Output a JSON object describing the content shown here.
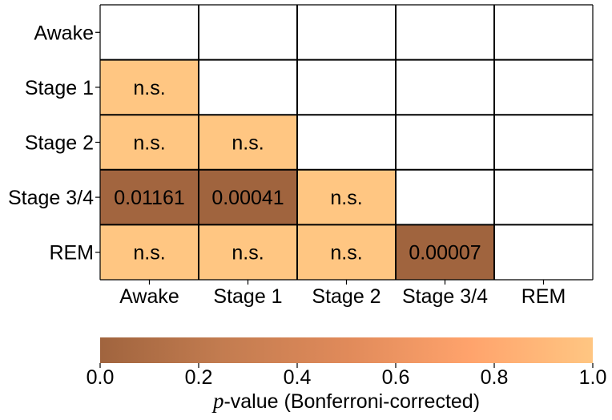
{
  "chart_data": {
    "type": "heatmap",
    "title": "",
    "x_categories": [
      "Awake",
      "Stage 1",
      "Stage 2",
      "Stage 3/4",
      "REM"
    ],
    "y_categories": [
      "Awake",
      "Stage 1",
      "Stage 2",
      "Stage 3/4",
      "REM"
    ],
    "cells": [
      {
        "row": "Stage 1",
        "col": "Awake",
        "label": "n.s.",
        "value": 1.0
      },
      {
        "row": "Stage 2",
        "col": "Awake",
        "label": "n.s.",
        "value": 1.0
      },
      {
        "row": "Stage 2",
        "col": "Stage 1",
        "label": "n.s.",
        "value": 1.0
      },
      {
        "row": "Stage 3/4",
        "col": "Awake",
        "label": "0.01161",
        "value": 0.01161
      },
      {
        "row": "Stage 3/4",
        "col": "Stage 1",
        "label": "0.00041",
        "value": 0.00041
      },
      {
        "row": "Stage 3/4",
        "col": "Stage 2",
        "label": "n.s.",
        "value": 1.0
      },
      {
        "row": "REM",
        "col": "Awake",
        "label": "n.s.",
        "value": 1.0
      },
      {
        "row": "REM",
        "col": "Stage 1",
        "label": "n.s.",
        "value": 1.0
      },
      {
        "row": "REM",
        "col": "Stage 2",
        "label": "n.s.",
        "value": 1.0
      },
      {
        "row": "REM",
        "col": "Stage 3/4",
        "label": "0.00007",
        "value": 7e-05
      }
    ],
    "colorbar": {
      "range": [
        0.0,
        1.0
      ],
      "ticks": [
        "0.0",
        "0.2",
        "0.4",
        "0.6",
        "0.8",
        "1.0"
      ],
      "label_italic": "p",
      "label_rest": "-value (Bonferroni-corrected)",
      "colors": [
        "#a0643e",
        "#c37c50",
        "#e08a5a",
        "#ffa36c",
        "#ffc682"
      ]
    },
    "grid_color": "#000000"
  }
}
